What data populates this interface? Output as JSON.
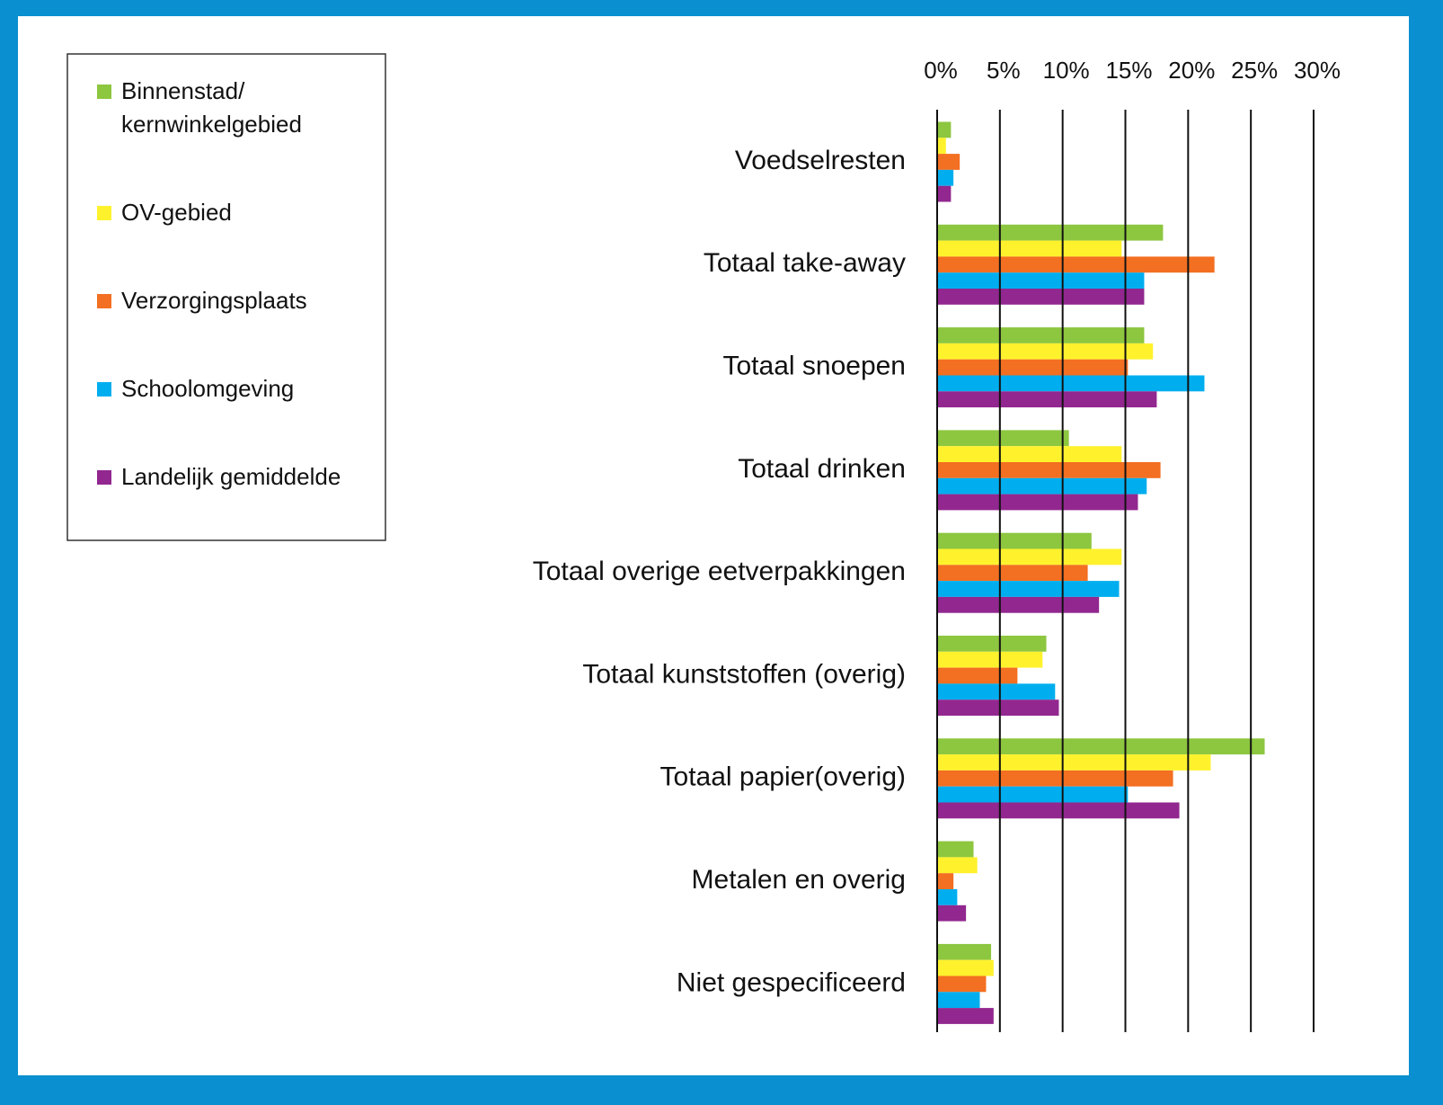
{
  "chart_data": {
    "type": "barh",
    "categories": [
      "Voedselresten",
      "Totaal take-away",
      "Totaal snoepen",
      "Totaal drinken",
      "Totaal overige eetverpakkingen",
      "Totaal kunststoffen (overig)",
      "Totaal papier(overig)",
      "Metalen en overig",
      "Niet gespecificeerd"
    ],
    "series": [
      {
        "name": "Binnenstad/ kernwinkelgebied",
        "color": "#8dc63f",
        "values": [
          1.1,
          18.0,
          16.5,
          10.5,
          12.3,
          8.7,
          26.1,
          2.9,
          4.3
        ]
      },
      {
        "name": "OV-gebied",
        "color": "#fff22d",
        "values": [
          0.7,
          14.7,
          17.2,
          14.7,
          14.7,
          8.4,
          21.8,
          3.2,
          4.5
        ]
      },
      {
        "name": "Verzorgingsplaats",
        "color": "#f36f21",
        "values": [
          1.8,
          22.1,
          15.2,
          17.8,
          12.0,
          6.4,
          18.8,
          1.3,
          3.9
        ]
      },
      {
        "name": "Schoolomgeving",
        "color": "#00aeef",
        "values": [
          1.3,
          16.5,
          21.3,
          16.7,
          14.5,
          9.4,
          15.2,
          1.6,
          3.4
        ]
      },
      {
        "name": "Landelijk gemiddelde",
        "color": "#92278f",
        "values": [
          1.1,
          16.5,
          17.5,
          16.0,
          12.9,
          9.7,
          19.3,
          2.3,
          4.5
        ]
      }
    ],
    "xlim": [
      0,
      30
    ],
    "xticks": [
      {
        "value": 0,
        "label": "0%"
      },
      {
        "value": 5,
        "label": "5%"
      },
      {
        "value": 10,
        "label": "10%"
      },
      {
        "value": 15,
        "label": "15%"
      },
      {
        "value": 20,
        "label": "20%"
      },
      {
        "value": 25,
        "label": "25%"
      },
      {
        "value": 30,
        "label": "30%"
      }
    ],
    "grid": true
  }
}
